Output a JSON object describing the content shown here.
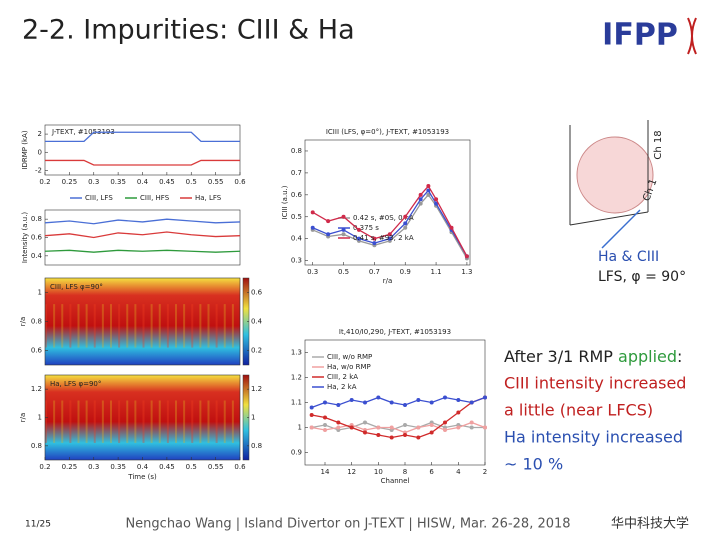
{
  "header": {
    "title": "2-2. Impurities: CIII & Ha",
    "logo": "IFPP"
  },
  "figures": {
    "current": {
      "type": "line",
      "title": "J-TEXT, #1053193",
      "ylabel": "IDRMP (kA)",
      "x": [
        0.2,
        0.28,
        0.3,
        0.5,
        0.52,
        0.6
      ],
      "xlim": [
        0.2,
        0.6
      ],
      "xticks": [
        0.2,
        0.25,
        0.3,
        0.35,
        0.4,
        0.45,
        0.5,
        0.55,
        0.6
      ],
      "ylim": [
        -2.5,
        3
      ],
      "yticks": [
        -2,
        0,
        2
      ],
      "series": [
        {
          "color": "#4a6fd6",
          "values": [
            1.2,
            1.2,
            2.2,
            2.2,
            1.2,
            1.2
          ]
        },
        {
          "color": "#d93a3a",
          "values": [
            -0.9,
            -0.9,
            -1.4,
            -1.4,
            -0.9,
            -0.9
          ]
        }
      ]
    },
    "intensity": {
      "type": "line",
      "ylabel": "Intensity (a.u.)",
      "x": [
        0.2,
        0.25,
        0.3,
        0.35,
        0.4,
        0.45,
        0.5,
        0.55,
        0.6
      ],
      "xlim": [
        0.2,
        0.6
      ],
      "ylim": [
        0.3,
        0.9
      ],
      "yticks": [
        0.4,
        0.6,
        0.8
      ],
      "series": [
        {
          "name": "CIII, LFS",
          "color": "#4a6fd6",
          "values": [
            0.76,
            0.78,
            0.75,
            0.79,
            0.77,
            0.8,
            0.78,
            0.76,
            0.77
          ]
        },
        {
          "name": "CIII, HFS",
          "color": "#2e9a3c",
          "values": [
            0.45,
            0.46,
            0.44,
            0.46,
            0.45,
            0.46,
            0.45,
            0.44,
            0.45
          ]
        },
        {
          "name": "Ha, LFS",
          "color": "#d93a3a",
          "values": [
            0.62,
            0.64,
            0.6,
            0.65,
            0.63,
            0.66,
            0.63,
            0.61,
            0.62
          ]
        }
      ]
    },
    "ciii_map": {
      "label": "CIII, LFS φ=90°",
      "ylabel": "r/a",
      "ylim": [
        0.5,
        1.1
      ],
      "yticks": [
        0.6,
        0.8,
        1
      ],
      "clim": [
        0.1,
        0.7
      ],
      "cticks": [
        0.2,
        0.4,
        0.6
      ]
    },
    "ha_map": {
      "label": "Ha, LFS φ=90°",
      "ylabel": "r/a",
      "ylim": [
        0.7,
        1.3
      ],
      "yticks": [
        0.8,
        1,
        1.2
      ],
      "clim": [
        0.7,
        1.3
      ],
      "cticks": [
        0.8,
        1,
        1.2
      ],
      "xlabel": "Time (s)",
      "xlim": [
        0.2,
        0.6
      ],
      "xticks": [
        0.2,
        0.25,
        0.3,
        0.35,
        0.4,
        0.45,
        0.5,
        0.55,
        0.6
      ]
    },
    "profile": {
      "type": "line",
      "title": "ICIII (LFS, φ=0°), J-TEXT, #1053193",
      "ylabel": "ICIII (a.u.)",
      "xlabel": "r/a",
      "x": [
        0.3,
        0.4,
        0.5,
        0.6,
        0.7,
        0.8,
        0.9,
        1.0,
        1.05,
        1.1,
        1.2,
        1.3
      ],
      "xlim": [
        0.25,
        1.32
      ],
      "xticks": [
        0.3,
        0.5,
        0.7,
        0.9,
        1.1,
        1.3
      ],
      "ylim": [
        0.28,
        0.85
      ],
      "yticks": [
        0.3,
        0.4,
        0.5,
        0.6,
        0.7,
        0.8
      ],
      "series": [
        {
          "name": "0.42 s, #0S, 0 kA",
          "color": "#999999",
          "values": [
            0.44,
            0.41,
            0.42,
            0.39,
            0.37,
            0.39,
            0.45,
            0.56,
            0.6,
            0.55,
            0.43,
            0.31
          ]
        },
        {
          "name": "0.375 s",
          "color": "#3b4fd0",
          "values": [
            0.45,
            0.42,
            0.44,
            0.4,
            0.38,
            0.4,
            0.47,
            0.58,
            0.62,
            0.56,
            0.44,
            0.32
          ]
        },
        {
          "name": "0.41 s, #93, 2 kA",
          "color": "#d02a4a",
          "values": [
            0.52,
            0.48,
            0.5,
            0.44,
            0.4,
            0.42,
            0.5,
            0.6,
            0.64,
            0.58,
            0.45,
            0.32
          ]
        }
      ]
    },
    "ratio": {
      "type": "line",
      "title": "It,410/I0,290, J-TEXT, #1053193",
      "xlabel": "Channel",
      "x": [
        15,
        14,
        13,
        12,
        11,
        10,
        9,
        8,
        7,
        6,
        5,
        4,
        3,
        2
      ],
      "xlim": [
        15.5,
        2
      ],
      "xticks": [
        14,
        12,
        10,
        8,
        6,
        4,
        2
      ],
      "ylim": [
        0.85,
        1.35
      ],
      "yticks": [
        0.9,
        1,
        1.1,
        1.2,
        1.3
      ],
      "series": [
        {
          "name": "CIII, w/o RMP",
          "color": "#aaaaaa",
          "values": [
            1.0,
            1.01,
            0.99,
            1.0,
            1.02,
            1.0,
            0.99,
            1.01,
            1.0,
            1.02,
            1.0,
            1.01,
            1.0,
            1.0
          ]
        },
        {
          "name": "Ha, w/o RMP",
          "color": "#f0a0a0",
          "values": [
            1.0,
            0.99,
            1.0,
            1.01,
            0.99,
            1.0,
            1.0,
            0.98,
            1.0,
            1.01,
            0.99,
            1.0,
            1.02,
            1.0
          ]
        },
        {
          "name": "CIII, 2 kA",
          "color": "#d02a2a",
          "values": [
            1.05,
            1.04,
            1.02,
            1.0,
            0.98,
            0.97,
            0.96,
            0.97,
            0.96,
            0.98,
            1.02,
            1.06,
            1.1,
            1.12
          ]
        },
        {
          "name": "Ha, 2 kA",
          "color": "#3b4fd0",
          "values": [
            1.08,
            1.1,
            1.09,
            1.11,
            1.1,
            1.12,
            1.1,
            1.09,
            1.11,
            1.1,
            1.12,
            1.11,
            1.1,
            1.12
          ]
        }
      ]
    }
  },
  "diagram": {
    "ch18": "Ch 18",
    "ch1": "Ch 1",
    "line1": "Ha & CIII",
    "line2": "LFS, φ = 90°"
  },
  "text_block": {
    "line1": [
      "After 3/1 RMP",
      "applied",
      ":"
    ],
    "line2": "CIII intensity increased",
    "line3": "a little (near LFCS)",
    "line4": "Ha intensity increased",
    "line5": "~ 10 %"
  },
  "footer": {
    "page": "11/25",
    "text": "Nengchao Wang | Island Divertor on J-TEXT | HISW, Mar. 26-28, 2018",
    "university": "华中科技大学"
  }
}
